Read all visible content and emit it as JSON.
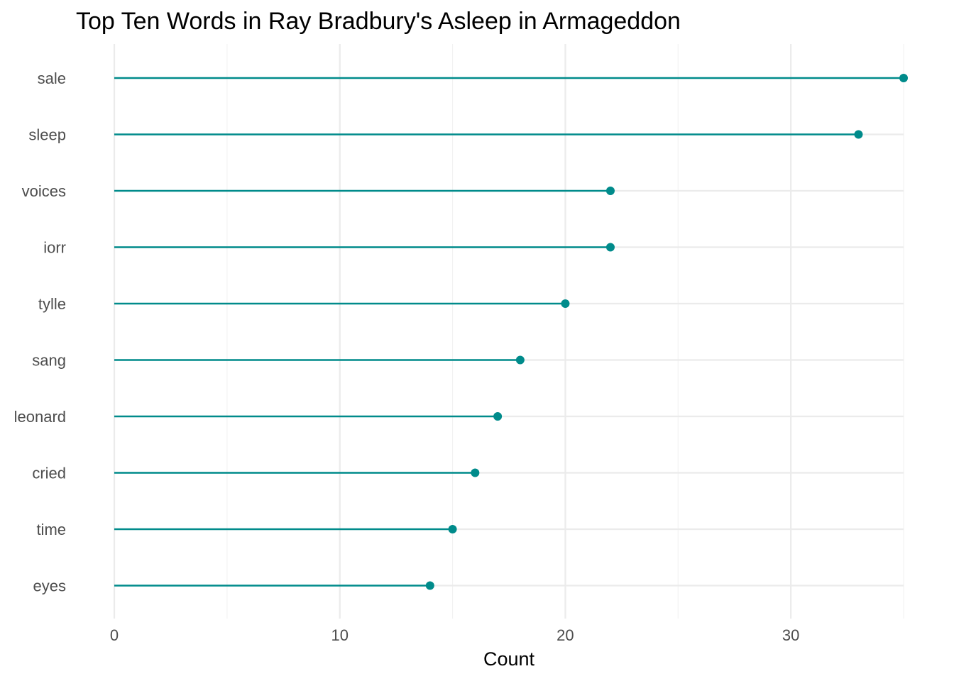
{
  "chart_data": {
    "type": "lollipop",
    "orientation": "horizontal",
    "title": "Top Ten Words in Ray Bradbury's Asleep in Armageddon",
    "xlabel": "Count",
    "ylabel": "",
    "categories": [
      "sale",
      "sleep",
      "voices",
      "iorr",
      "tylle",
      "sang",
      "leonard",
      "cried",
      "time",
      "eyes"
    ],
    "values": [
      35,
      33,
      22,
      22,
      20,
      18,
      17,
      16,
      15,
      14
    ],
    "xlim": [
      0,
      35
    ],
    "x_ticks": [
      0,
      10,
      20,
      30
    ],
    "x_tick_labels": [
      "0",
      "10",
      "20",
      "30"
    ],
    "grid": true,
    "legend": "none",
    "colors": {
      "series": "#008b8b",
      "grid_major": "#ebebeb",
      "grid_minor": "#f2f2f2",
      "tick_text": "#4d4d4d",
      "title_text": "#000000"
    }
  }
}
